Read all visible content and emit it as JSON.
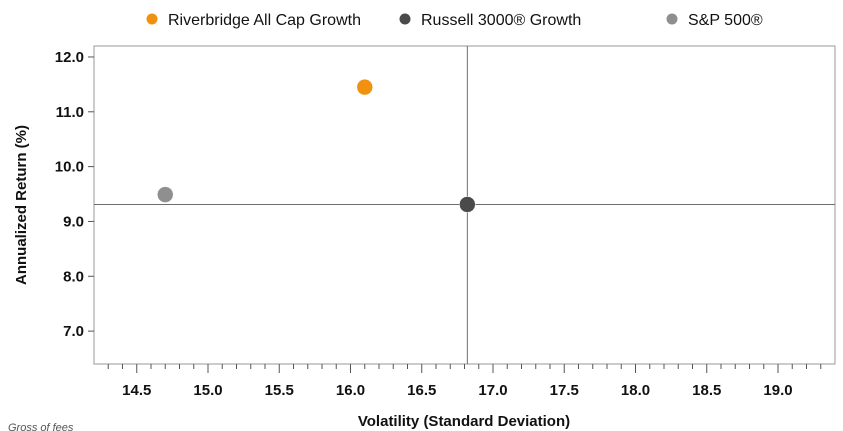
{
  "chart_data": {
    "type": "scatter",
    "title": "",
    "xlabel": "Volatility (Standard Deviation)",
    "ylabel": "Annualized Return (%)",
    "xlim": [
      14.2,
      19.4
    ],
    "ylim": [
      6.4,
      12.2
    ],
    "xticks": [
      14.5,
      15.0,
      15.5,
      16.0,
      16.5,
      17.0,
      17.5,
      18.0,
      18.5,
      19.0
    ],
    "yticks": [
      7.0,
      8.0,
      9.0,
      10.0,
      11.0,
      12.0
    ],
    "xtick_labels": [
      "14.5",
      "15.0",
      "15.5",
      "16.0",
      "16.5",
      "17.0",
      "17.5",
      "18.0",
      "18.5",
      "19.0"
    ],
    "ytick_labels": [
      "7.0",
      "8.0",
      "9.0",
      "10.0",
      "11.0",
      "12.0"
    ],
    "grid": false,
    "legend_position": "top",
    "reference_lines": {
      "x": 16.82,
      "y": 9.31
    },
    "series": [
      {
        "name": "Riverbridge All Cap Growth",
        "color": "#f0920f",
        "points": [
          {
            "x": 16.1,
            "y": 11.45
          }
        ]
      },
      {
        "name": "Russell 3000® Growth",
        "color": "#4a4a4a",
        "points": [
          {
            "x": 16.82,
            "y": 9.31
          }
        ]
      },
      {
        "name": "S&P 500®",
        "color": "#8f8f8f",
        "points": [
          {
            "x": 14.7,
            "y": 9.49
          }
        ]
      }
    ],
    "footnote": "Gross of fees"
  }
}
